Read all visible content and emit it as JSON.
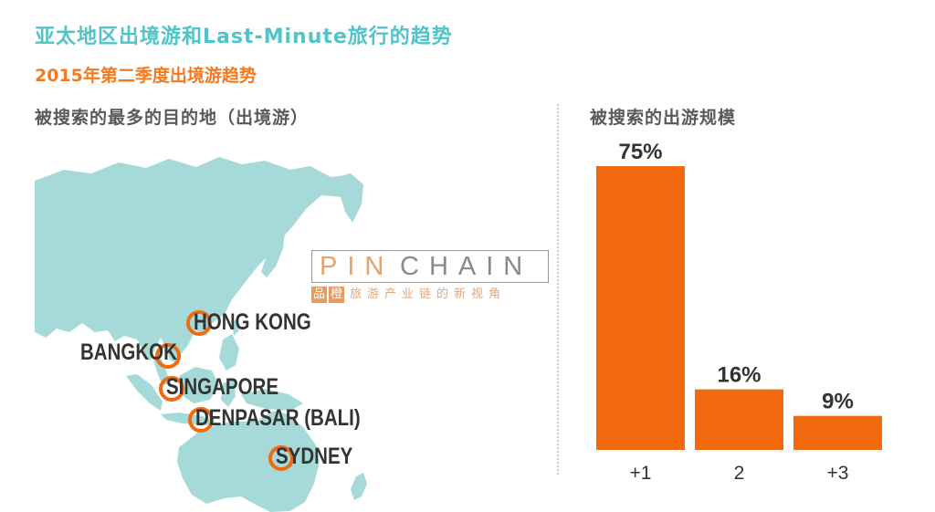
{
  "title": "亚太地区出境游和Last-Minute旅行的趋势",
  "subtitle": "2015年第二季度出境游趋势",
  "left_heading": "被搜索的最多的目的地（出境游）",
  "right_heading": "被搜索的出游规模",
  "destinations": [
    {
      "name": "HONG KONG"
    },
    {
      "name": "BANGKOK"
    },
    {
      "name": "SINGAPORE"
    },
    {
      "name": "DENPASAR (BALI)"
    },
    {
      "name": "SYDNEY"
    }
  ],
  "watermark": {
    "part1": "PIN",
    "part2": "CHAIN",
    "tag1": "品",
    "tag2": "橙",
    "slogan": "旅游产业链的新视角"
  },
  "colors": {
    "title": "#4fc4c9",
    "subtitle": "#f47a20",
    "bar": "#f26a10",
    "map": "#a6dad8",
    "marker": "#f26a10"
  },
  "chart_data": {
    "type": "bar",
    "categories": [
      "+1",
      "2",
      "+3"
    ],
    "values": [
      75,
      16,
      9
    ],
    "value_labels": [
      "75%",
      "16%",
      "9%"
    ],
    "unit": "%",
    "ylim": [
      0,
      75
    ],
    "grid": false,
    "legend": "none"
  }
}
